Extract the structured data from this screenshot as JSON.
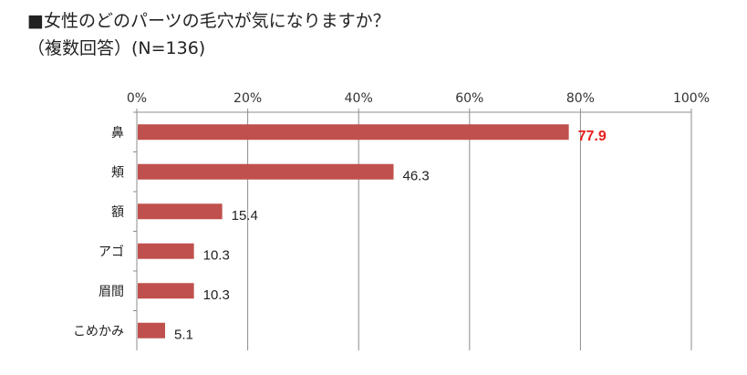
{
  "header": {
    "title": "■女性のどのパーツの毛穴が気になりますか？",
    "subtitle": "（複数回答）(N=136)"
  },
  "colors": {
    "bar": "#c0504d",
    "highlight_label": "#e8201e",
    "grid": "#8c8c8c"
  },
  "chart_data": {
    "type": "bar",
    "orientation": "horizontal",
    "categories": [
      "鼻",
      "頬",
      "額",
      "アゴ",
      "眉間",
      "こめかみ"
    ],
    "values": [
      77.9,
      46.3,
      15.4,
      10.3,
      10.3,
      5.1
    ],
    "value_labels": [
      "77.9",
      "46.3",
      "15.4",
      "10.3",
      "10.3",
      "5.1"
    ],
    "highlight_index": 0,
    "xlim": [
      0,
      100
    ],
    "xticks": [
      "0%",
      "20%",
      "40%",
      "60%",
      "80%",
      "100%"
    ],
    "grid": true,
    "axis_position": "top"
  }
}
